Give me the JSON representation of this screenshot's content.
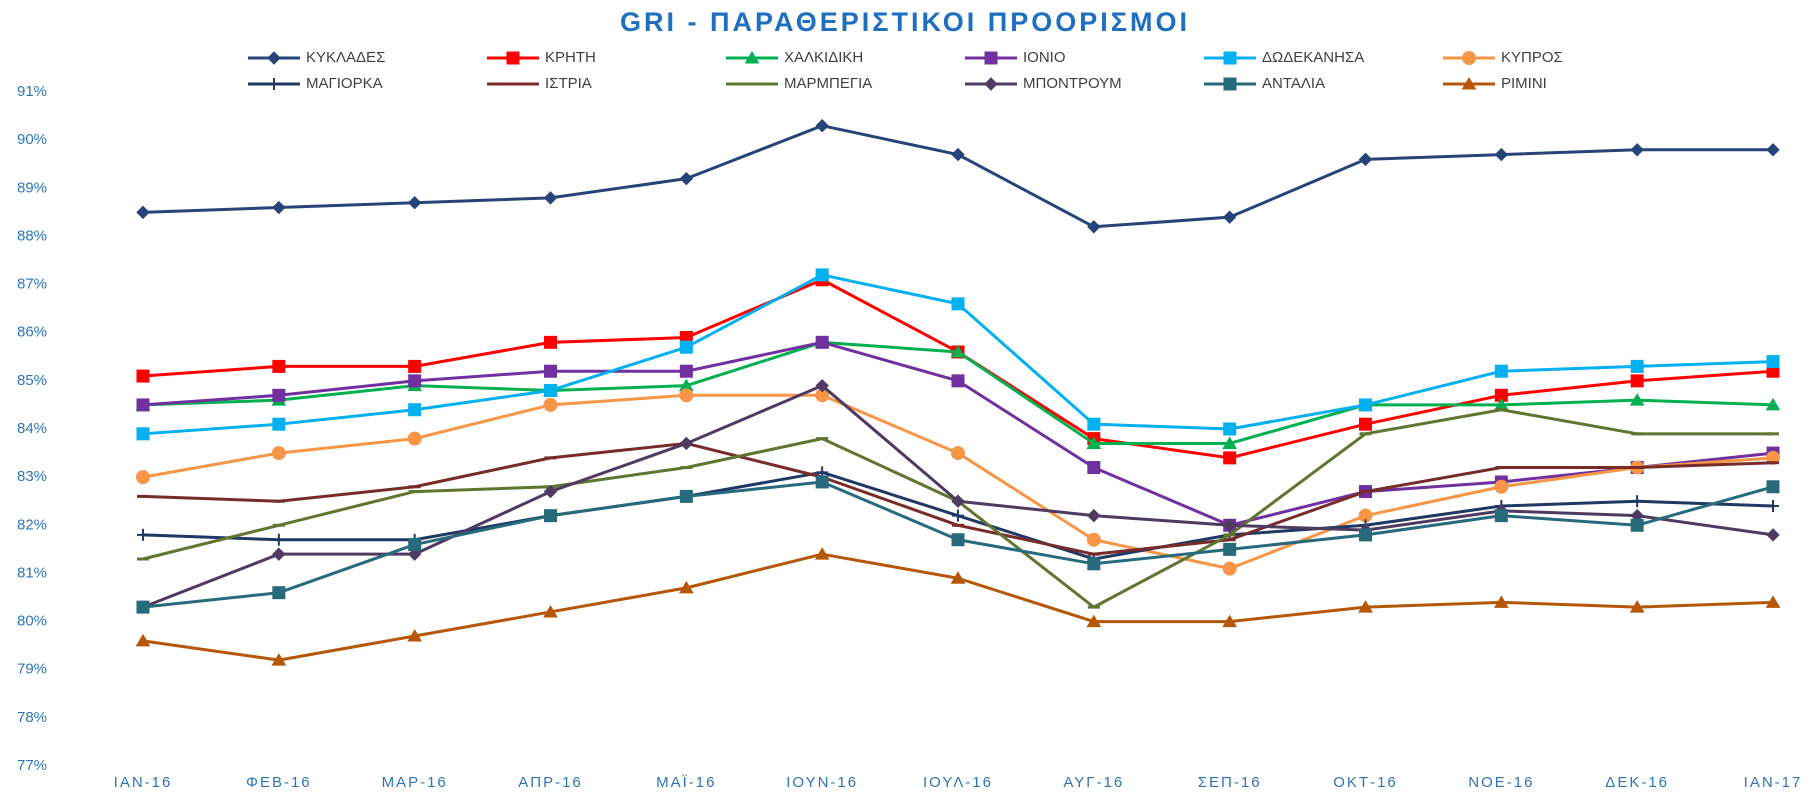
{
  "chart_data": {
    "type": "line",
    "title": "GRI - ΠΑΡΑΘΕΡΙΣΤΙΚΟΙ ΠΡΟΟΡΙΣΜΟΙ",
    "categories": [
      "ΙΑΝ-16",
      "ΦΕΒ-16",
      "ΜΑΡ-16",
      "ΑΠΡ-16",
      "ΜΑΪ-16",
      "ΙΟΥΝ-16",
      "ΙΟΥΛ-16",
      "ΑΥΓ-16",
      "ΣΕΠ-16",
      "ΟΚΤ-16",
      "ΝΟΕ-16",
      "ΔΕΚ-16",
      "ΙΑΝ-17"
    ],
    "ylim": [
      77,
      91
    ],
    "yticks": [
      {
        "value": 77,
        "label": "77%"
      },
      {
        "value": 78,
        "label": "78%"
      },
      {
        "value": 79,
        "label": "79%"
      },
      {
        "value": 80,
        "label": "80%"
      },
      {
        "value": 81,
        "label": "81%"
      },
      {
        "value": 82,
        "label": "82%"
      },
      {
        "value": 83,
        "label": "83%"
      },
      {
        "value": 84,
        "label": "84%"
      },
      {
        "value": 85,
        "label": "85%"
      },
      {
        "value": 86,
        "label": "86%"
      },
      {
        "value": 87,
        "label": "87%"
      },
      {
        "value": 88,
        "label": "88%"
      },
      {
        "value": 89,
        "label": "89%"
      },
      {
        "value": 90,
        "label": "90%"
      },
      {
        "value": 91,
        "label": "91%"
      }
    ],
    "grid": false,
    "legend": "top",
    "series": [
      {
        "name": "ΚΥΚΛΑΔΕΣ",
        "color": "#264478",
        "marker": "diamond",
        "values": [
          88.5,
          88.6,
          88.7,
          88.8,
          89.2,
          90.3,
          89.7,
          88.2,
          88.4,
          89.6,
          89.7,
          89.8,
          89.8
        ]
      },
      {
        "name": "ΚΡΗΤΗ",
        "color": "#ff0000",
        "marker": "square",
        "values": [
          85.1,
          85.3,
          85.3,
          85.8,
          85.9,
          87.1,
          85.6,
          83.8,
          83.4,
          84.1,
          84.7,
          85.0,
          85.2
        ]
      },
      {
        "name": "ΧΑΛΚΙΔΙΚΗ",
        "color": "#00b050",
        "marker": "triangle",
        "values": [
          84.5,
          84.6,
          84.9,
          84.8,
          84.9,
          85.8,
          85.6,
          83.7,
          83.7,
          84.5,
          84.5,
          84.6,
          84.5
        ]
      },
      {
        "name": "ΙΟΝΙΟ",
        "color": "#7030a0",
        "marker": "square",
        "values": [
          84.5,
          84.7,
          85.0,
          85.2,
          85.2,
          85.8,
          85.0,
          83.2,
          82.0,
          82.7,
          82.9,
          83.2,
          83.5
        ]
      },
      {
        "name": "ΔΩΔΕΚΑΝΗΣΑ",
        "color": "#00b0f0",
        "marker": "square",
        "values": [
          83.9,
          84.1,
          84.4,
          84.8,
          85.7,
          87.2,
          86.6,
          84.1,
          84.0,
          84.5,
          85.2,
          85.3,
          85.4
        ]
      },
      {
        "name": "ΚΥΠΡΟΣ",
        "color": "#f79646",
        "marker": "circle",
        "values": [
          83.0,
          83.5,
          83.8,
          84.5,
          84.7,
          84.7,
          83.5,
          81.7,
          81.1,
          82.2,
          82.8,
          83.2,
          83.4
        ]
      },
      {
        "name": "ΜΑΓΙΟΡΚΑ",
        "color": "#1f3864",
        "marker": "plus",
        "values": [
          81.8,
          81.7,
          81.7,
          82.2,
          82.6,
          83.1,
          82.2,
          81.3,
          81.8,
          82.0,
          82.4,
          82.5,
          82.4
        ]
      },
      {
        "name": "ΙΣΤΡΙΑ",
        "color": "#772c2a",
        "marker": "dash",
        "values": [
          82.6,
          82.5,
          82.8,
          83.4,
          83.7,
          83.0,
          82.0,
          81.4,
          81.7,
          82.7,
          83.2,
          83.2,
          83.3
        ]
      },
      {
        "name": "ΜΑΡΜΠΕΓΙΑ",
        "color": "#5f7530",
        "marker": "dash",
        "values": [
          81.3,
          82.0,
          82.7,
          82.8,
          83.2,
          83.8,
          82.5,
          80.3,
          81.8,
          83.9,
          84.4,
          83.9,
          83.9
        ]
      },
      {
        "name": "ΜΠΟΝΤΡΟΥΜ",
        "color": "#4f3b62",
        "marker": "diamond",
        "values": [
          80.3,
          81.4,
          81.4,
          82.7,
          83.7,
          84.9,
          82.5,
          82.2,
          82.0,
          81.9,
          82.3,
          82.2,
          81.8
        ]
      },
      {
        "name": "ΑΝΤΑΛΙΑ",
        "color": "#276a7c",
        "marker": "square",
        "values": [
          80.3,
          80.6,
          81.6,
          82.2,
          82.6,
          82.9,
          81.7,
          81.2,
          81.5,
          81.8,
          82.2,
          82.0,
          82.8
        ]
      },
      {
        "name": "ΡΙΜΙΝΙ",
        "color": "#b65708",
        "marker": "triangle",
        "values": [
          79.6,
          79.2,
          79.7,
          80.2,
          80.7,
          81.4,
          80.9,
          80.0,
          80.0,
          80.3,
          80.4,
          80.3,
          80.4
        ]
      }
    ]
  }
}
